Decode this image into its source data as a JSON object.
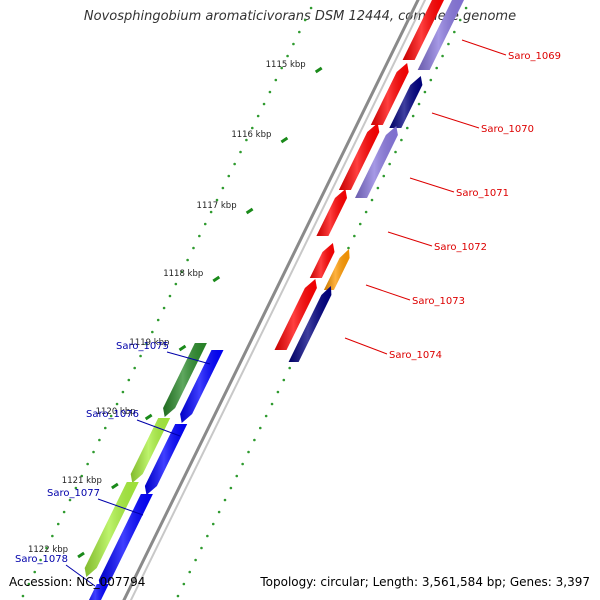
{
  "title": "Novosphingobium aromaticivorans DSM 12444, complete genome",
  "footer": {
    "accession": "Accession: NC_007794",
    "topology": "Topology: circular; Length: 3,561,584 bp; Genes: 3,397"
  },
  "colors": {
    "backbone": "#8a8a8a",
    "tick": "#1a8a1a",
    "gc_dots": "#2e9a2e",
    "red_gene": "#ff0000",
    "lavender_gene": "#8877dd",
    "navy_gene": "#000080",
    "orange_gene": "#ff9900",
    "blue_gene": "#0000ff",
    "darkgreen_gene": "#2a8a2a",
    "lightgreen_gene": "#a8f03c",
    "label_red": "#dd0000",
    "label_blue": "#0000aa"
  },
  "ticks": [
    "1115 kbp",
    "1116 kbp",
    "1117 kbp",
    "1118 kbp",
    "1119 kbp",
    "1120 kbp",
    "1121 kbp",
    "1122 kbp"
  ],
  "genes": [
    {
      "id": "Saro_1069",
      "strand": "plus"
    },
    {
      "id": "Saro_1070",
      "strand": "plus"
    },
    {
      "id": "Saro_1071",
      "strand": "plus"
    },
    {
      "id": "Saro_1072",
      "strand": "plus"
    },
    {
      "id": "Saro_1073",
      "strand": "plus"
    },
    {
      "id": "Saro_1074",
      "strand": "plus"
    },
    {
      "id": "Saro_1075",
      "strand": "minus"
    },
    {
      "id": "Saro_1076",
      "strand": "minus"
    },
    {
      "id": "Saro_1077",
      "strand": "minus"
    },
    {
      "id": "Saro_1078",
      "strand": "minus"
    }
  ]
}
